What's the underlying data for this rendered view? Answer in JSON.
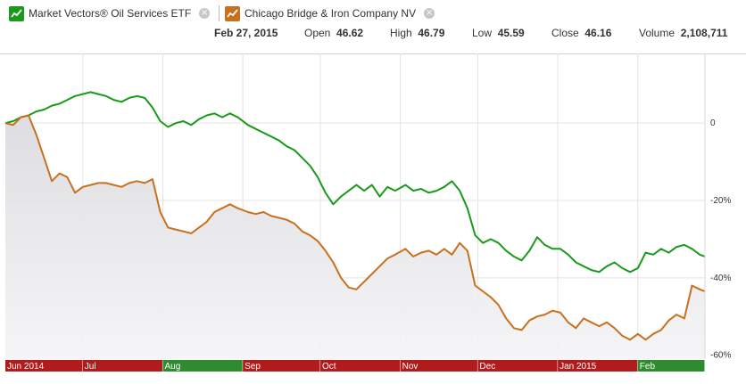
{
  "legend": {
    "series1": {
      "label": "Market Vectors® Oil Services ETF",
      "color": "#1a9a1a",
      "icon": "line-chart-icon"
    },
    "series2": {
      "label": "Chicago Bridge & Iron Company NV",
      "color": "#c8701e",
      "icon": "line-chart-icon"
    }
  },
  "quote": {
    "date": "Feb 27, 2015",
    "open_label": "Open",
    "open_value": "46.62",
    "high_label": "High",
    "high_value": "46.79",
    "low_label": "Low",
    "low_value": "45.59",
    "close_label": "Close",
    "close_value": "46.16",
    "volume_label": "Volume",
    "volume_value": "2,108,711"
  },
  "chart_data": {
    "type": "line",
    "x_range": [
      "2014-06-01",
      "2015-02-27"
    ],
    "x_ticks": [
      {
        "label": "Jun 2014",
        "date": "2014-06-01"
      },
      {
        "label": "Jul",
        "date": "2014-07-01"
      },
      {
        "label": "Aug",
        "date": "2014-08-01"
      },
      {
        "label": "Sep",
        "date": "2014-09-01"
      },
      {
        "label": "Oct",
        "date": "2014-10-01"
      },
      {
        "label": "Nov",
        "date": "2014-11-01"
      },
      {
        "label": "Dec",
        "date": "2014-12-01"
      },
      {
        "label": "Jan 2015",
        "date": "2015-01-01"
      },
      {
        "label": "Feb",
        "date": "2015-02-01"
      }
    ],
    "month_bar_colors": [
      "#b01c1c",
      "#b01c1c",
      "#2e8b2e",
      "#b01c1c",
      "#b01c1c",
      "#b01c1c",
      "#b01c1c",
      "#b01c1c",
      "#2e8b2e"
    ],
    "y_ticks": [
      {
        "label": "0",
        "value": 0
      },
      {
        "label": "-20%",
        "value": -20
      },
      {
        "label": "-40%",
        "value": -40
      },
      {
        "label": "-60%",
        "value": -60
      }
    ],
    "ylim": [
      -61,
      18
    ],
    "grid": true,
    "series": [
      {
        "name": "Market Vectors® Oil Services ETF",
        "color": "#1a9a1a",
        "fill": false,
        "points": [
          [
            "2014-06-01",
            0
          ],
          [
            "2014-06-04",
            0.5
          ],
          [
            "2014-06-07",
            1.5
          ],
          [
            "2014-06-10",
            2
          ],
          [
            "2014-06-13",
            3
          ],
          [
            "2014-06-16",
            3.5
          ],
          [
            "2014-06-19",
            4.5
          ],
          [
            "2014-06-22",
            5
          ],
          [
            "2014-06-25",
            6
          ],
          [
            "2014-06-28",
            7
          ],
          [
            "2014-07-01",
            7.5
          ],
          [
            "2014-07-04",
            8
          ],
          [
            "2014-07-07",
            7.5
          ],
          [
            "2014-07-10",
            7
          ],
          [
            "2014-07-13",
            6
          ],
          [
            "2014-07-16",
            5.5
          ],
          [
            "2014-07-19",
            6.5
          ],
          [
            "2014-07-22",
            7
          ],
          [
            "2014-07-25",
            6.5
          ],
          [
            "2014-07-28",
            4
          ],
          [
            "2014-07-31",
            0.5
          ],
          [
            "2014-08-03",
            -1
          ],
          [
            "2014-08-06",
            0
          ],
          [
            "2014-08-09",
            0.5
          ],
          [
            "2014-08-12",
            -0.5
          ],
          [
            "2014-08-15",
            1
          ],
          [
            "2014-08-18",
            2
          ],
          [
            "2014-08-21",
            2.5
          ],
          [
            "2014-08-24",
            1.5
          ],
          [
            "2014-08-27",
            2.5
          ],
          [
            "2014-08-30",
            1.5
          ],
          [
            "2014-09-03",
            -0.5
          ],
          [
            "2014-09-06",
            -1.5
          ],
          [
            "2014-09-09",
            -2.5
          ],
          [
            "2014-09-12",
            -3.5
          ],
          [
            "2014-09-15",
            -4.5
          ],
          [
            "2014-09-18",
            -6
          ],
          [
            "2014-09-21",
            -7
          ],
          [
            "2014-09-24",
            -9
          ],
          [
            "2014-09-27",
            -11
          ],
          [
            "2014-09-30",
            -14
          ],
          [
            "2014-10-03",
            -18
          ],
          [
            "2014-10-06",
            -21
          ],
          [
            "2014-10-09",
            -19
          ],
          [
            "2014-10-12",
            -17.5
          ],
          [
            "2014-10-15",
            -16
          ],
          [
            "2014-10-18",
            -17.5
          ],
          [
            "2014-10-21",
            -16
          ],
          [
            "2014-10-24",
            -19
          ],
          [
            "2014-10-27",
            -16.5
          ],
          [
            "2014-10-30",
            -17.5
          ],
          [
            "2014-11-03",
            -16
          ],
          [
            "2014-11-06",
            -17.5
          ],
          [
            "2014-11-09",
            -17
          ],
          [
            "2014-11-12",
            -18
          ],
          [
            "2014-11-15",
            -17.5
          ],
          [
            "2014-11-18",
            -16.5
          ],
          [
            "2014-11-21",
            -15
          ],
          [
            "2014-11-24",
            -17.5
          ],
          [
            "2014-11-27",
            -22
          ],
          [
            "2014-11-30",
            -29
          ],
          [
            "2014-12-03",
            -31
          ],
          [
            "2014-12-06",
            -30
          ],
          [
            "2014-12-09",
            -31
          ],
          [
            "2014-12-12",
            -33
          ],
          [
            "2014-12-15",
            -34.5
          ],
          [
            "2014-12-18",
            -35.5
          ],
          [
            "2014-12-21",
            -33
          ],
          [
            "2014-12-24",
            -29.5
          ],
          [
            "2014-12-27",
            -31.5
          ],
          [
            "2014-12-30",
            -32.5
          ],
          [
            "2015-01-02",
            -32.5
          ],
          [
            "2015-01-05",
            -34
          ],
          [
            "2015-01-08",
            -36
          ],
          [
            "2015-01-11",
            -37
          ],
          [
            "2015-01-14",
            -38
          ],
          [
            "2015-01-17",
            -38.5
          ],
          [
            "2015-01-20",
            -37
          ],
          [
            "2015-01-23",
            -36
          ],
          [
            "2015-01-26",
            -37.5
          ],
          [
            "2015-01-29",
            -38.5
          ],
          [
            "2015-02-01",
            -37.5
          ],
          [
            "2015-02-04",
            -33.5
          ],
          [
            "2015-02-07",
            -34
          ],
          [
            "2015-02-10",
            -32.5
          ],
          [
            "2015-02-13",
            -33.5
          ],
          [
            "2015-02-16",
            -32
          ],
          [
            "2015-02-19",
            -31.5
          ],
          [
            "2015-02-22",
            -32.5
          ],
          [
            "2015-02-25",
            -34
          ],
          [
            "2015-02-27",
            -34.5
          ]
        ]
      },
      {
        "name": "Chicago Bridge & Iron Company NV",
        "color": "#c8701e",
        "fill": true,
        "points": [
          [
            "2014-06-01",
            0
          ],
          [
            "2014-06-04",
            -0.5
          ],
          [
            "2014-06-07",
            1.5
          ],
          [
            "2014-06-10",
            2
          ],
          [
            "2014-06-13",
            -3
          ],
          [
            "2014-06-16",
            -9
          ],
          [
            "2014-06-19",
            -15
          ],
          [
            "2014-06-22",
            -13
          ],
          [
            "2014-06-25",
            -14
          ],
          [
            "2014-06-28",
            -18
          ],
          [
            "2014-07-01",
            -16.5
          ],
          [
            "2014-07-04",
            -16
          ],
          [
            "2014-07-07",
            -15.5
          ],
          [
            "2014-07-10",
            -15.5
          ],
          [
            "2014-07-13",
            -16
          ],
          [
            "2014-07-16",
            -16.5
          ],
          [
            "2014-07-19",
            -15.5
          ],
          [
            "2014-07-22",
            -15
          ],
          [
            "2014-07-25",
            -15.5
          ],
          [
            "2014-07-28",
            -14.5
          ],
          [
            "2014-07-31",
            -23
          ],
          [
            "2014-08-03",
            -27
          ],
          [
            "2014-08-06",
            -27.5
          ],
          [
            "2014-08-09",
            -28
          ],
          [
            "2014-08-12",
            -28.5
          ],
          [
            "2014-08-15",
            -27
          ],
          [
            "2014-08-18",
            -25.5
          ],
          [
            "2014-08-21",
            -23
          ],
          [
            "2014-08-24",
            -22
          ],
          [
            "2014-08-27",
            -21
          ],
          [
            "2014-08-30",
            -22
          ],
          [
            "2014-09-03",
            -23
          ],
          [
            "2014-09-06",
            -23.5
          ],
          [
            "2014-09-09",
            -23
          ],
          [
            "2014-09-12",
            -24
          ],
          [
            "2014-09-15",
            -24.5
          ],
          [
            "2014-09-18",
            -25
          ],
          [
            "2014-09-21",
            -26
          ],
          [
            "2014-09-24",
            -28
          ],
          [
            "2014-09-27",
            -29
          ],
          [
            "2014-09-30",
            -30.5
          ],
          [
            "2014-10-03",
            -33
          ],
          [
            "2014-10-06",
            -36
          ],
          [
            "2014-10-09",
            -40
          ],
          [
            "2014-10-12",
            -42.5
          ],
          [
            "2014-10-15",
            -43
          ],
          [
            "2014-10-18",
            -41
          ],
          [
            "2014-10-21",
            -39
          ],
          [
            "2014-10-24",
            -37
          ],
          [
            "2014-10-27",
            -35
          ],
          [
            "2014-10-30",
            -34
          ],
          [
            "2014-11-03",
            -32.5
          ],
          [
            "2014-11-06",
            -34.5
          ],
          [
            "2014-11-09",
            -33.5
          ],
          [
            "2014-11-12",
            -33
          ],
          [
            "2014-11-15",
            -34
          ],
          [
            "2014-11-18",
            -32.5
          ],
          [
            "2014-11-21",
            -34
          ],
          [
            "2014-11-24",
            -31
          ],
          [
            "2014-11-27",
            -33
          ],
          [
            "2014-11-30",
            -42
          ],
          [
            "2014-12-03",
            -43.5
          ],
          [
            "2014-12-06",
            -45
          ],
          [
            "2014-12-09",
            -47
          ],
          [
            "2014-12-12",
            -50.5
          ],
          [
            "2014-12-15",
            -53
          ],
          [
            "2014-12-18",
            -53.5
          ],
          [
            "2014-12-21",
            -51
          ],
          [
            "2014-12-24",
            -50
          ],
          [
            "2014-12-27",
            -49.5
          ],
          [
            "2014-12-30",
            -48.5
          ],
          [
            "2015-01-02",
            -49
          ],
          [
            "2015-01-05",
            -51.5
          ],
          [
            "2015-01-08",
            -53
          ],
          [
            "2015-01-11",
            -50.5
          ],
          [
            "2015-01-14",
            -51.5
          ],
          [
            "2015-01-17",
            -52.5
          ],
          [
            "2015-01-20",
            -51.5
          ],
          [
            "2015-01-23",
            -53
          ],
          [
            "2015-01-26",
            -55
          ],
          [
            "2015-01-29",
            -56
          ],
          [
            "2015-02-01",
            -54.5
          ],
          [
            "2015-02-04",
            -56
          ],
          [
            "2015-02-07",
            -54.5
          ],
          [
            "2015-02-10",
            -53.5
          ],
          [
            "2015-02-13",
            -51
          ],
          [
            "2015-02-16",
            -49.5
          ],
          [
            "2015-02-19",
            -50.5
          ],
          [
            "2015-02-22",
            -42
          ],
          [
            "2015-02-25",
            -43
          ],
          [
            "2015-02-27",
            -43.5
          ]
        ]
      }
    ]
  }
}
